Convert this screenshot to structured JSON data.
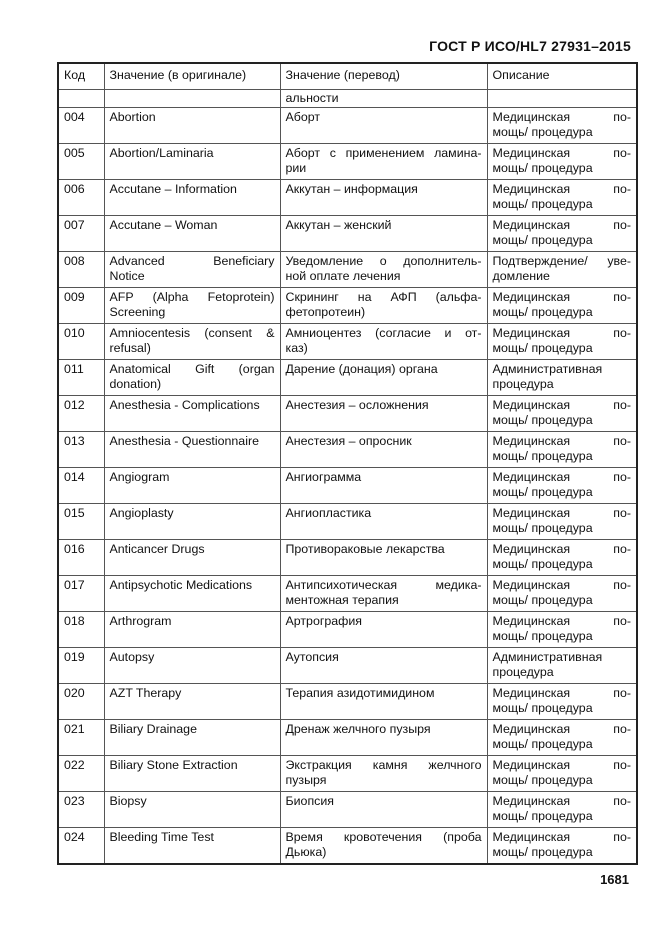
{
  "header": "ГОСТ Р ИСО/HL7 27931–2015",
  "page_number": "1681",
  "columns": [
    "Код",
    "Значение (в оригинале)",
    "Значение (перевод)",
    "Описание"
  ],
  "continuation": [
    "",
    "",
    "альности",
    ""
  ],
  "rows": [
    {
      "code": "004",
      "en": [
        "Abortion"
      ],
      "ru": [
        "Аборт"
      ],
      "desc": [
        "Медицинская по-",
        "мощь/ процедура"
      ]
    },
    {
      "code": "005",
      "en": [
        "Abortion/Laminaria"
      ],
      "ru": [
        "Аборт с применением ламина-",
        "рии"
      ],
      "desc": [
        "Медицинская по-",
        "мощь/ процедура"
      ]
    },
    {
      "code": "006",
      "en": [
        "Accutane – Information"
      ],
      "ru": [
        "Аккутан – информация"
      ],
      "desc": [
        "Медицинская по-",
        "мощь/ процедура"
      ]
    },
    {
      "code": "007",
      "en": [
        "Accutane – Woman"
      ],
      "ru": [
        "Аккутан – женский"
      ],
      "desc": [
        "Медицинская по-",
        "мощь/ процедура"
      ]
    },
    {
      "code": "008",
      "en": [
        "Advanced Beneficiary",
        "Notice"
      ],
      "ru": [
        "Уведомление о дополнитель-",
        "ной оплате лечения"
      ],
      "desc": [
        "Подтверждение/ уве-",
        "домление"
      ]
    },
    {
      "code": "009",
      "en": [
        "AFP (Alpha Fetoprotein)",
        "Screening"
      ],
      "ru": [
        "Скрининг на АФП (альфа-",
        "фетопротеин)"
      ],
      "desc": [
        "Медицинская по-",
        "мощь/ процедура"
      ]
    },
    {
      "code": "010",
      "en": [
        "Amniocentesis (consent &",
        "refusal)"
      ],
      "ru": [
        "Амниоцентез (согласие и от-",
        "каз)"
      ],
      "desc": [
        "Медицинская по-",
        "мощь/ процедура"
      ]
    },
    {
      "code": "011",
      "en": [
        "Anatomical Gift (organ",
        "donation)"
      ],
      "ru": [
        "Дарение (донация) органа"
      ],
      "desc": [
        "Административная",
        "процедура"
      ]
    },
    {
      "code": "012",
      "en": [
        "Anesthesia - Complications"
      ],
      "ru": [
        "Анестезия – осложнения"
      ],
      "desc": [
        "Медицинская по-",
        "мощь/ процедура"
      ]
    },
    {
      "code": "013",
      "en": [
        "Anesthesia - Questionnaire"
      ],
      "ru": [
        "Анестезия – опросник"
      ],
      "desc": [
        "Медицинская по-",
        "мощь/ процедура"
      ]
    },
    {
      "code": "014",
      "en": [
        "Angiogram"
      ],
      "ru": [
        "Ангиограмма"
      ],
      "desc": [
        "Медицинская по-",
        "мощь/ процедура"
      ]
    },
    {
      "code": "015",
      "en": [
        "Angioplasty"
      ],
      "ru": [
        "Ангиопластика"
      ],
      "desc": [
        "Медицинская по-",
        "мощь/ процедура"
      ]
    },
    {
      "code": "016",
      "en": [
        "Anticancer Drugs"
      ],
      "ru": [
        "Противораковые лекарства"
      ],
      "desc": [
        "Медицинская по-",
        "мощь/ процедура"
      ]
    },
    {
      "code": "017",
      "en": [
        "Antipsychotic Medications"
      ],
      "ru": [
        "Антипсихотическая медика-",
        "ментожная терапия"
      ],
      "desc": [
        "Медицинская по-",
        "мощь/ процедура"
      ]
    },
    {
      "code": "018",
      "en": [
        "Arthrogram"
      ],
      "ru": [
        "Артрография"
      ],
      "desc": [
        "Медицинская по-",
        "мощь/ процедура"
      ]
    },
    {
      "code": "019",
      "en": [
        "Autopsy"
      ],
      "ru": [
        "Аутопсия"
      ],
      "desc": [
        "Административная",
        "процедура"
      ]
    },
    {
      "code": "020",
      "en": [
        "AZT Therapy"
      ],
      "ru": [
        "Терапия азидотимидином"
      ],
      "desc": [
        "Медицинская по-",
        "мощь/ процедура"
      ]
    },
    {
      "code": "021",
      "en": [
        "Biliary Drainage"
      ],
      "ru": [
        "Дренаж желчного пузыря"
      ],
      "desc": [
        "Медицинская по-",
        "мощь/ процедура"
      ]
    },
    {
      "code": "022",
      "en": [
        "Biliary Stone Extraction"
      ],
      "ru": [
        "Экстракция камня желчного",
        "пузыря"
      ],
      "desc": [
        "Медицинская по-",
        "мощь/ процедура"
      ]
    },
    {
      "code": "023",
      "en": [
        "Biopsy"
      ],
      "ru": [
        "Биопсия"
      ],
      "desc": [
        "Медицинская по-",
        "мощь/ процедура"
      ]
    },
    {
      "code": "024",
      "en": [
        "Bleeding Time Test"
      ],
      "ru": [
        "Время кровотечения (проба",
        "Дьюка)"
      ],
      "desc": [
        "Медицинская по-",
        "мощь/ процедура"
      ]
    }
  ]
}
